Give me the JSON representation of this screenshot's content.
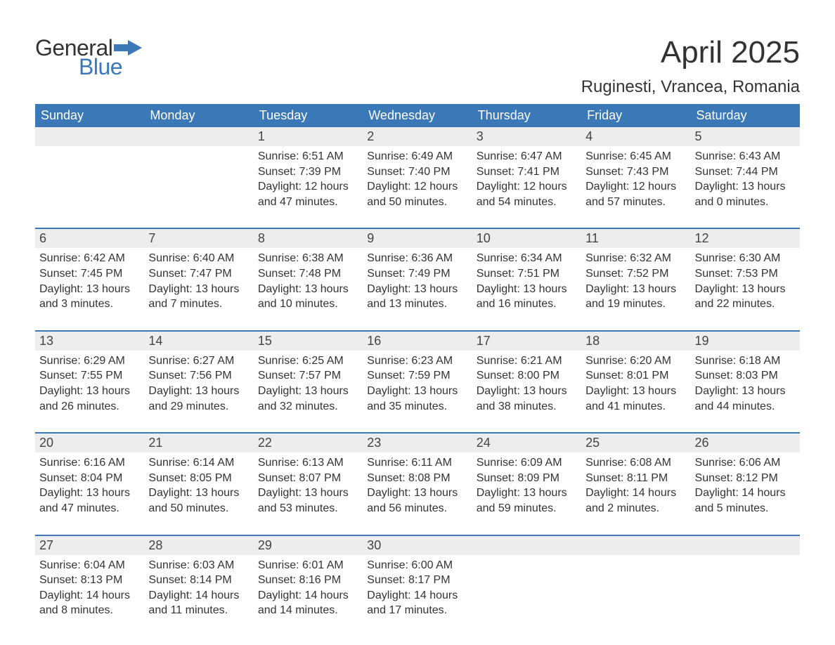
{
  "brand": {
    "word1": "General",
    "word2": "Blue",
    "word1_color": "#333333",
    "word2_color": "#3a78b8",
    "flag_color": "#3a78b8",
    "fontsize": 32
  },
  "header": {
    "title": "April 2025",
    "title_fontsize": 44,
    "location": "Ruginesti, Vrancea, Romania",
    "location_fontsize": 24
  },
  "calendar": {
    "day_header_bg": "#3a78b8",
    "day_header_color": "#ffffff",
    "daynum_bg": "#ededed",
    "daynum_border": "#3a78b8",
    "text_color": "#333333",
    "columns": [
      "Sunday",
      "Monday",
      "Tuesday",
      "Wednesday",
      "Thursday",
      "Friday",
      "Saturday"
    ],
    "weeks": [
      [
        null,
        null,
        {
          "n": "1",
          "sunrise": "Sunrise: 6:51 AM",
          "sunset": "Sunset: 7:39 PM",
          "daylight": "Daylight: 12 hours and 47 minutes."
        },
        {
          "n": "2",
          "sunrise": "Sunrise: 6:49 AM",
          "sunset": "Sunset: 7:40 PM",
          "daylight": "Daylight: 12 hours and 50 minutes."
        },
        {
          "n": "3",
          "sunrise": "Sunrise: 6:47 AM",
          "sunset": "Sunset: 7:41 PM",
          "daylight": "Daylight: 12 hours and 54 minutes."
        },
        {
          "n": "4",
          "sunrise": "Sunrise: 6:45 AM",
          "sunset": "Sunset: 7:43 PM",
          "daylight": "Daylight: 12 hours and 57 minutes."
        },
        {
          "n": "5",
          "sunrise": "Sunrise: 6:43 AM",
          "sunset": "Sunset: 7:44 PM",
          "daylight": "Daylight: 13 hours and 0 minutes."
        }
      ],
      [
        {
          "n": "6",
          "sunrise": "Sunrise: 6:42 AM",
          "sunset": "Sunset: 7:45 PM",
          "daylight": "Daylight: 13 hours and 3 minutes."
        },
        {
          "n": "7",
          "sunrise": "Sunrise: 6:40 AM",
          "sunset": "Sunset: 7:47 PM",
          "daylight": "Daylight: 13 hours and 7 minutes."
        },
        {
          "n": "8",
          "sunrise": "Sunrise: 6:38 AM",
          "sunset": "Sunset: 7:48 PM",
          "daylight": "Daylight: 13 hours and 10 minutes."
        },
        {
          "n": "9",
          "sunrise": "Sunrise: 6:36 AM",
          "sunset": "Sunset: 7:49 PM",
          "daylight": "Daylight: 13 hours and 13 minutes."
        },
        {
          "n": "10",
          "sunrise": "Sunrise: 6:34 AM",
          "sunset": "Sunset: 7:51 PM",
          "daylight": "Daylight: 13 hours and 16 minutes."
        },
        {
          "n": "11",
          "sunrise": "Sunrise: 6:32 AM",
          "sunset": "Sunset: 7:52 PM",
          "daylight": "Daylight: 13 hours and 19 minutes."
        },
        {
          "n": "12",
          "sunrise": "Sunrise: 6:30 AM",
          "sunset": "Sunset: 7:53 PM",
          "daylight": "Daylight: 13 hours and 22 minutes."
        }
      ],
      [
        {
          "n": "13",
          "sunrise": "Sunrise: 6:29 AM",
          "sunset": "Sunset: 7:55 PM",
          "daylight": "Daylight: 13 hours and 26 minutes."
        },
        {
          "n": "14",
          "sunrise": "Sunrise: 6:27 AM",
          "sunset": "Sunset: 7:56 PM",
          "daylight": "Daylight: 13 hours and 29 minutes."
        },
        {
          "n": "15",
          "sunrise": "Sunrise: 6:25 AM",
          "sunset": "Sunset: 7:57 PM",
          "daylight": "Daylight: 13 hours and 32 minutes."
        },
        {
          "n": "16",
          "sunrise": "Sunrise: 6:23 AM",
          "sunset": "Sunset: 7:59 PM",
          "daylight": "Daylight: 13 hours and 35 minutes."
        },
        {
          "n": "17",
          "sunrise": "Sunrise: 6:21 AM",
          "sunset": "Sunset: 8:00 PM",
          "daylight": "Daylight: 13 hours and 38 minutes."
        },
        {
          "n": "18",
          "sunrise": "Sunrise: 6:20 AM",
          "sunset": "Sunset: 8:01 PM",
          "daylight": "Daylight: 13 hours and 41 minutes."
        },
        {
          "n": "19",
          "sunrise": "Sunrise: 6:18 AM",
          "sunset": "Sunset: 8:03 PM",
          "daylight": "Daylight: 13 hours and 44 minutes."
        }
      ],
      [
        {
          "n": "20",
          "sunrise": "Sunrise: 6:16 AM",
          "sunset": "Sunset: 8:04 PM",
          "daylight": "Daylight: 13 hours and 47 minutes."
        },
        {
          "n": "21",
          "sunrise": "Sunrise: 6:14 AM",
          "sunset": "Sunset: 8:05 PM",
          "daylight": "Daylight: 13 hours and 50 minutes."
        },
        {
          "n": "22",
          "sunrise": "Sunrise: 6:13 AM",
          "sunset": "Sunset: 8:07 PM",
          "daylight": "Daylight: 13 hours and 53 minutes."
        },
        {
          "n": "23",
          "sunrise": "Sunrise: 6:11 AM",
          "sunset": "Sunset: 8:08 PM",
          "daylight": "Daylight: 13 hours and 56 minutes."
        },
        {
          "n": "24",
          "sunrise": "Sunrise: 6:09 AM",
          "sunset": "Sunset: 8:09 PM",
          "daylight": "Daylight: 13 hours and 59 minutes."
        },
        {
          "n": "25",
          "sunrise": "Sunrise: 6:08 AM",
          "sunset": "Sunset: 8:11 PM",
          "daylight": "Daylight: 14 hours and 2 minutes."
        },
        {
          "n": "26",
          "sunrise": "Sunrise: 6:06 AM",
          "sunset": "Sunset: 8:12 PM",
          "daylight": "Daylight: 14 hours and 5 minutes."
        }
      ],
      [
        {
          "n": "27",
          "sunrise": "Sunrise: 6:04 AM",
          "sunset": "Sunset: 8:13 PM",
          "daylight": "Daylight: 14 hours and 8 minutes."
        },
        {
          "n": "28",
          "sunrise": "Sunrise: 6:03 AM",
          "sunset": "Sunset: 8:14 PM",
          "daylight": "Daylight: 14 hours and 11 minutes."
        },
        {
          "n": "29",
          "sunrise": "Sunrise: 6:01 AM",
          "sunset": "Sunset: 8:16 PM",
          "daylight": "Daylight: 14 hours and 14 minutes."
        },
        {
          "n": "30",
          "sunrise": "Sunrise: 6:00 AM",
          "sunset": "Sunset: 8:17 PM",
          "daylight": "Daylight: 14 hours and 17 minutes."
        },
        null,
        null,
        null
      ]
    ]
  }
}
